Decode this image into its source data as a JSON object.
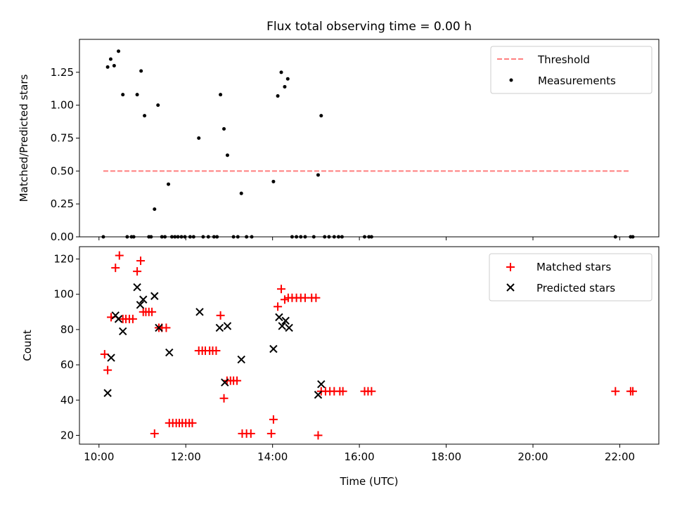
{
  "chart_data": {
    "title": "Flux total observing time = 0.00 h",
    "xlabel": "Time (UTC)",
    "x_unit": "hours UTC",
    "xlim": [
      9.55,
      22.9
    ],
    "xticks": [
      {
        "value": 10,
        "label": "10:00"
      },
      {
        "value": 12,
        "label": "12:00"
      },
      {
        "value": 14,
        "label": "14:00"
      },
      {
        "value": 16,
        "label": "16:00"
      },
      {
        "value": 18,
        "label": "18:00"
      },
      {
        "value": 20,
        "label": "20:00"
      },
      {
        "value": 22,
        "label": "22:00"
      }
    ],
    "panels": [
      {
        "type": "scatter",
        "ylabel": "Matched/Predicted stars",
        "ylim": [
          0,
          1.5
        ],
        "yticks": [
          {
            "value": 0,
            "label": "0.00"
          },
          {
            "value": 0.25,
            "label": "0.25"
          },
          {
            "value": 0.5,
            "label": "0.50"
          },
          {
            "value": 0.75,
            "label": "0.75"
          },
          {
            "value": 1.0,
            "label": "1.00"
          },
          {
            "value": 1.25,
            "label": "1.25"
          }
        ],
        "legend_position": "top-right",
        "threshold": {
          "name": "Threshold",
          "y": 0.5,
          "x_range": [
            10.1,
            22.25
          ],
          "color": "#ff7f7f"
        },
        "series": [
          {
            "name": "Measurements",
            "marker": "dot",
            "color": "#000000",
            "points": [
              [
                10.1,
                0
              ],
              [
                10.2,
                1.29
              ],
              [
                10.27,
                1.35
              ],
              [
                10.35,
                1.3
              ],
              [
                10.45,
                1.41
              ],
              [
                10.55,
                1.08
              ],
              [
                10.65,
                0
              ],
              [
                10.75,
                0
              ],
              [
                10.8,
                0
              ],
              [
                10.88,
                1.08
              ],
              [
                10.97,
                1.26
              ],
              [
                11.05,
                0.92
              ],
              [
                11.15,
                0
              ],
              [
                11.2,
                0
              ],
              [
                11.28,
                0.21
              ],
              [
                11.36,
                1.0
              ],
              [
                11.45,
                0
              ],
              [
                11.52,
                0
              ],
              [
                11.6,
                0.4
              ],
              [
                11.68,
                0
              ],
              [
                11.75,
                0
              ],
              [
                11.82,
                0
              ],
              [
                11.9,
                0
              ],
              [
                11.98,
                0
              ],
              [
                12.1,
                0
              ],
              [
                12.18,
                0
              ],
              [
                12.3,
                0.75
              ],
              [
                12.4,
                0
              ],
              [
                12.52,
                0
              ],
              [
                12.65,
                0
              ],
              [
                12.72,
                0
              ],
              [
                12.8,
                1.08
              ],
              [
                12.88,
                0.82
              ],
              [
                12.96,
                0.62
              ],
              [
                13.1,
                0
              ],
              [
                13.2,
                0
              ],
              [
                13.28,
                0.33
              ],
              [
                13.4,
                0
              ],
              [
                13.52,
                0
              ],
              [
                14.02,
                0.42
              ],
              [
                14.12,
                1.07
              ],
              [
                14.2,
                1.25
              ],
              [
                14.28,
                1.14
              ],
              [
                14.35,
                1.2
              ],
              [
                14.45,
                0
              ],
              [
                14.55,
                0
              ],
              [
                14.65,
                0
              ],
              [
                14.75,
                0
              ],
              [
                14.95,
                0
              ],
              [
                15.05,
                0.47
              ],
              [
                15.12,
                0.92
              ],
              [
                15.2,
                0
              ],
              [
                15.3,
                0
              ],
              [
                15.42,
                0
              ],
              [
                15.52,
                0
              ],
              [
                15.6,
                0
              ],
              [
                16.12,
                0
              ],
              [
                16.22,
                0
              ],
              [
                16.28,
                0
              ],
              [
                21.9,
                0
              ],
              [
                22.25,
                0
              ],
              [
                22.3,
                0
              ]
            ]
          }
        ]
      },
      {
        "type": "scatter",
        "ylabel": "Count",
        "ylim": [
          15,
          127
        ],
        "yticks": [
          {
            "value": 20,
            "label": "20"
          },
          {
            "value": 40,
            "label": "40"
          },
          {
            "value": 60,
            "label": "60"
          },
          {
            "value": 80,
            "label": "80"
          },
          {
            "value": 100,
            "label": "100"
          },
          {
            "value": 120,
            "label": "120"
          }
        ],
        "legend_position": "top-right",
        "series": [
          {
            "name": "Matched stars",
            "marker": "plus",
            "color": "#ff0000",
            "points": [
              [
                10.13,
                66
              ],
              [
                10.2,
                57
              ],
              [
                10.28,
                87
              ],
              [
                10.38,
                115
              ],
              [
                10.47,
                122
              ],
              [
                10.55,
                86
              ],
              [
                10.62,
                86
              ],
              [
                10.7,
                86
              ],
              [
                10.78,
                86
              ],
              [
                10.88,
                113
              ],
              [
                10.96,
                119
              ],
              [
                11.02,
                90
              ],
              [
                11.08,
                90
              ],
              [
                11.15,
                90
              ],
              [
                11.22,
                90
              ],
              [
                11.28,
                21
              ],
              [
                11.38,
                81
              ],
              [
                11.45,
                81
              ],
              [
                11.55,
                81
              ],
              [
                11.62,
                27
              ],
              [
                11.7,
                27
              ],
              [
                11.78,
                27
              ],
              [
                11.85,
                27
              ],
              [
                11.92,
                27
              ],
              [
                12.0,
                27
              ],
              [
                12.08,
                27
              ],
              [
                12.15,
                27
              ],
              [
                12.3,
                68
              ],
              [
                12.38,
                68
              ],
              [
                12.45,
                68
              ],
              [
                12.55,
                68
              ],
              [
                12.62,
                68
              ],
              [
                12.7,
                68
              ],
              [
                12.8,
                88
              ],
              [
                12.88,
                41
              ],
              [
                12.95,
                51
              ],
              [
                13.03,
                51
              ],
              [
                13.1,
                51
              ],
              [
                13.18,
                51
              ],
              [
                13.3,
                21
              ],
              [
                13.4,
                21
              ],
              [
                13.5,
                21
              ],
              [
                13.97,
                21
              ],
              [
                14.02,
                29
              ],
              [
                14.12,
                93
              ],
              [
                14.2,
                103
              ],
              [
                14.28,
                97
              ],
              [
                14.36,
                98
              ],
              [
                14.45,
                98
              ],
              [
                14.55,
                98
              ],
              [
                14.65,
                98
              ],
              [
                14.75,
                98
              ],
              [
                14.9,
                98
              ],
              [
                15.0,
                98
              ],
              [
                15.05,
                20
              ],
              [
                15.12,
                45
              ],
              [
                15.22,
                45
              ],
              [
                15.32,
                45
              ],
              [
                15.42,
                45
              ],
              [
                15.55,
                45
              ],
              [
                15.62,
                45
              ],
              [
                16.12,
                45
              ],
              [
                16.2,
                45
              ],
              [
                16.28,
                45
              ],
              [
                21.9,
                45
              ],
              [
                22.25,
                45
              ],
              [
                22.3,
                45
              ]
            ]
          },
          {
            "name": "Predicted stars",
            "marker": "x",
            "color": "#000000",
            "points": [
              [
                10.2,
                44
              ],
              [
                10.28,
                64
              ],
              [
                10.38,
                88
              ],
              [
                10.45,
                86
              ],
              [
                10.55,
                79
              ],
              [
                10.88,
                104
              ],
              [
                10.95,
                94
              ],
              [
                11.02,
                97
              ],
              [
                11.28,
                99
              ],
              [
                11.38,
                81
              ],
              [
                11.62,
                67
              ],
              [
                12.32,
                90
              ],
              [
                12.78,
                81
              ],
              [
                12.9,
                50
              ],
              [
                12.96,
                82
              ],
              [
                13.28,
                63
              ],
              [
                14.02,
                69
              ],
              [
                14.15,
                87
              ],
              [
                14.22,
                82
              ],
              [
                14.3,
                85
              ],
              [
                14.38,
                81
              ],
              [
                15.05,
                43
              ],
              [
                15.12,
                49
              ]
            ]
          }
        ]
      }
    ]
  }
}
